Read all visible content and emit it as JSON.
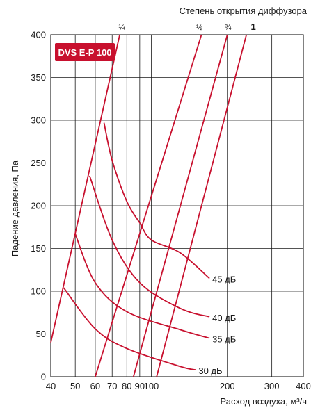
{
  "chart_data": {
    "type": "line",
    "title": "Степень открытия диффузора",
    "xlabel": "Расход воздуха, м³/ч",
    "ylabel": "Падение давления, Па",
    "x_ticks": [
      "40",
      "50",
      "60",
      "70",
      "80",
      "90",
      "100",
      "200",
      "300",
      "400"
    ],
    "y_ticks": [
      "0",
      "50",
      "100",
      "150",
      "200",
      "250",
      "300",
      "350",
      "400"
    ],
    "xlim": [
      40,
      400
    ],
    "ylim": [
      0,
      400
    ],
    "x_scale": "log",
    "grid": true,
    "badge": "DVS E-P 100",
    "opening_series": [
      {
        "name": "¼",
        "points": [
          [
            40,
            40
          ],
          [
            75,
            400
          ]
        ]
      },
      {
        "name": "½",
        "points": [
          [
            60,
            0
          ],
          [
            158,
            400
          ]
        ]
      },
      {
        "name": "¾",
        "points": [
          [
            85,
            0
          ],
          [
            200,
            400
          ]
        ]
      },
      {
        "name": "1",
        "points": [
          [
            105,
            0
          ],
          [
            238,
            400
          ]
        ]
      }
    ],
    "noise_series": [
      {
        "name": "45 дБ",
        "points": [
          [
            65,
            297
          ],
          [
            70,
            253
          ],
          [
            80,
            205
          ],
          [
            90,
            180
          ],
          [
            100,
            160
          ],
          [
            130,
            145
          ],
          [
            170,
            115
          ]
        ]
      },
      {
        "name": "40 дБ",
        "points": [
          [
            57,
            235
          ],
          [
            70,
            160
          ],
          [
            90,
            110
          ],
          [
            130,
            80
          ],
          [
            170,
            70
          ]
        ]
      },
      {
        "name": "35 дБ",
        "points": [
          [
            50,
            167
          ],
          [
            60,
            110
          ],
          [
            80,
            76
          ],
          [
            130,
            55
          ],
          [
            170,
            45
          ]
        ]
      },
      {
        "name": "30 дБ",
        "points": [
          [
            45,
            104
          ],
          [
            60,
            56
          ],
          [
            80,
            33
          ],
          [
            130,
            12
          ],
          [
            150,
            8
          ]
        ]
      }
    ],
    "colors": {
      "curve": "#c8102e",
      "grid": "#1a1a1a",
      "badge_bg": "#c8102e",
      "badge_text": "#ffffff"
    }
  }
}
